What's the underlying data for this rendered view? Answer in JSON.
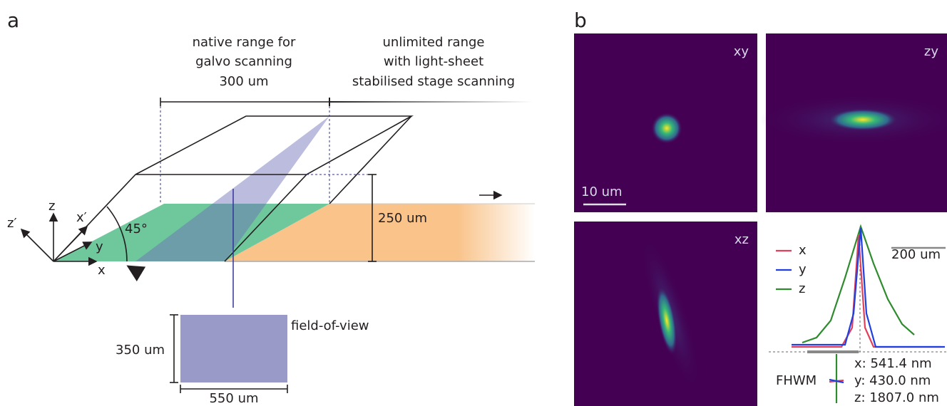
{
  "panel_a": {
    "label": "a",
    "galvo_range": [
      "native range for",
      "galvo scanning",
      "300 um"
    ],
    "stage_range": [
      "unlimited range",
      "with light-sheet",
      "stabilised stage scanning"
    ],
    "height_label": "250 um",
    "axes": {
      "z": "z",
      "x_prime": "x′",
      "z_prime": "z′",
      "y": "y",
      "x": "x"
    },
    "angle": "45°",
    "fov": {
      "label": "field-of-view",
      "height": "350 um",
      "width": "550 um"
    }
  },
  "panel_b": {
    "label": "b",
    "images": [
      {
        "label": "xy"
      },
      {
        "label": "zy"
      },
      {
        "label": "xz"
      }
    ],
    "scale_bar": "10 um",
    "legend": [
      "x",
      "y",
      "z"
    ],
    "profile_scale_bar": "200 um",
    "fwhm": {
      "label": "FHWM",
      "values": [
        "x: 541.4 nm",
        "y: 430.0 nm",
        "z: 1807.0 nm"
      ]
    }
  }
}
